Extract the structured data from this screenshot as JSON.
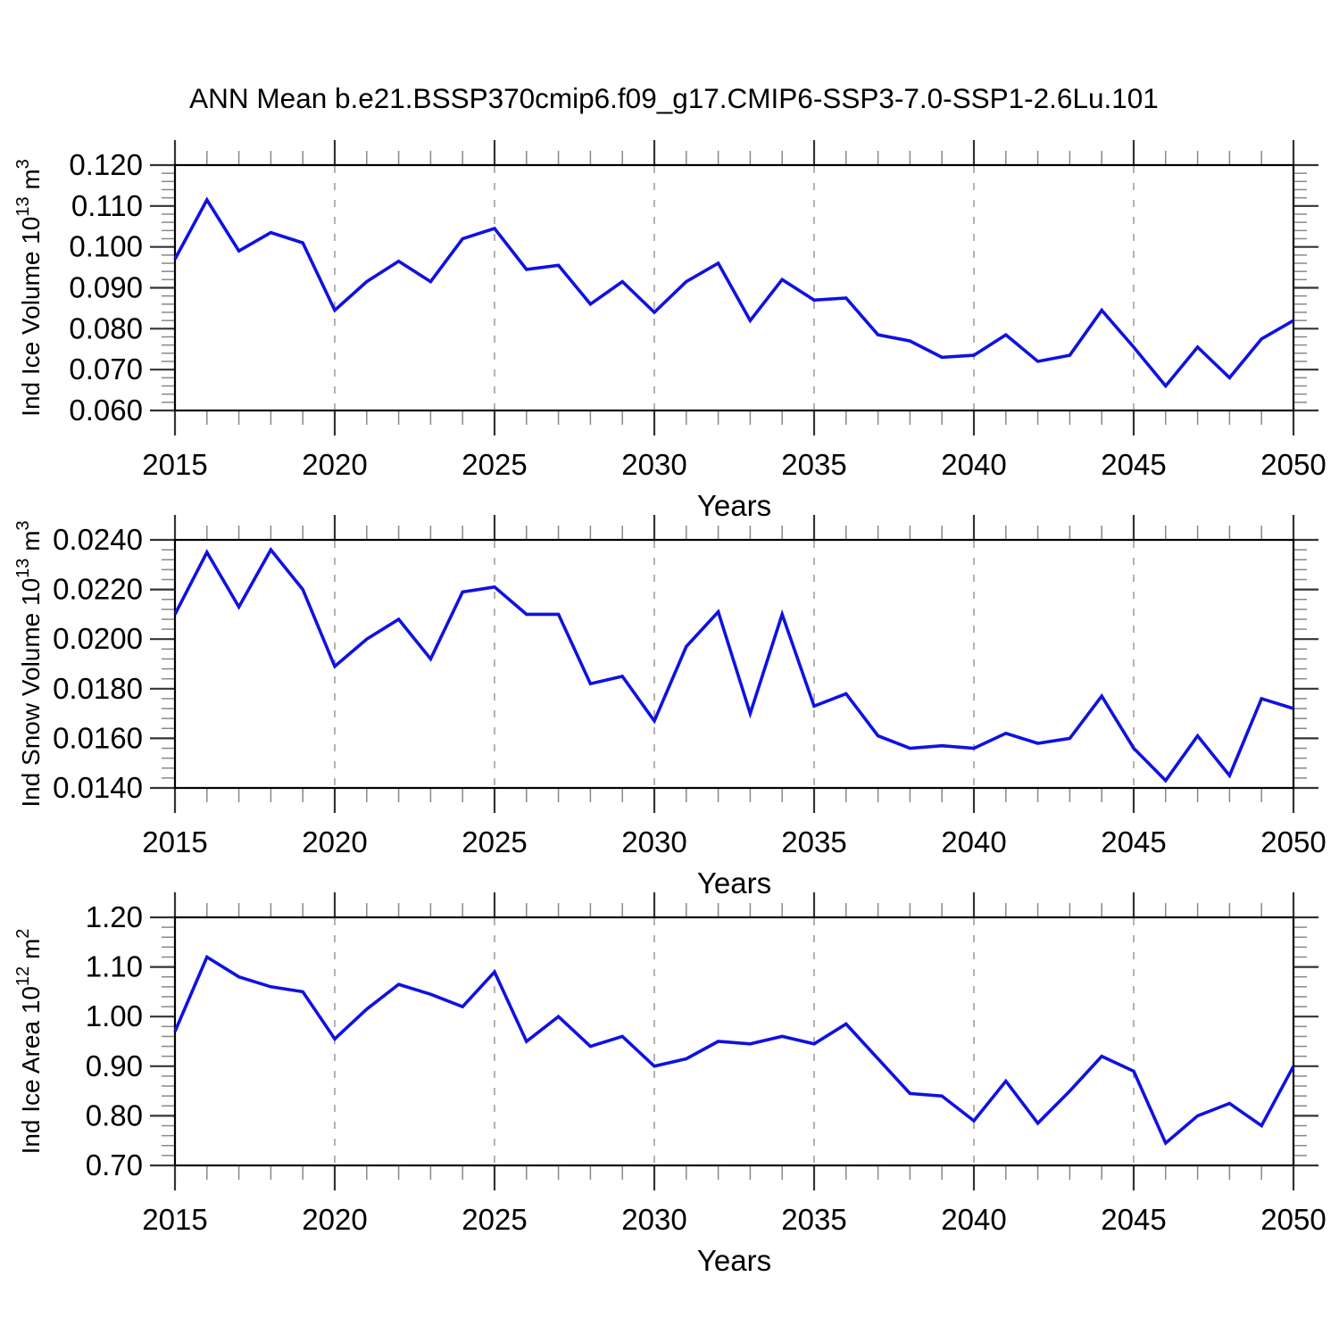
{
  "title": "ANN Mean b.e21.BSSP370cmip6.f09_g17.CMIP6-SSP3-7.0-SSP1-2.6Lu.101",
  "background": "#ffffff",
  "line_color": "#0f12e0",
  "grid_color": "#a0a0a0",
  "axis_color": "#000000",
  "major_tick_color": "#333333",
  "minor_tick_color": "#888888",
  "chart_data": [
    {
      "type": "line",
      "name": "ice-volume",
      "ylabel": "Ind Ice Volume 10^13 m^3",
      "ylabel_parts": {
        "pre": "Ind Ice Volume 10",
        "sup": "13",
        "mid": " m",
        "sup2": "3"
      },
      "xlabel": "Years",
      "xlim": [
        2015,
        2050
      ],
      "ylim": [
        0.06,
        0.12
      ],
      "ytick_labels": [
        "0.120",
        "0.110",
        "0.100",
        "0.090",
        "0.080",
        "0.070",
        "0.060"
      ],
      "xtick_labels": [
        "2015",
        "2020",
        "2025",
        "2030",
        "2035",
        "2040",
        "2045",
        "2050"
      ],
      "x_gridlines": [
        2020,
        2025,
        2030,
        2035,
        2040,
        2045
      ],
      "y_minor_per_major": 5,
      "x_minor_step_years": 1,
      "grid": "vertical-dashed",
      "legend": "none",
      "x": [
        2015,
        2016,
        2017,
        2018,
        2019,
        2020,
        2021,
        2022,
        2023,
        2024,
        2025,
        2026,
        2027,
        2028,
        2029,
        2030,
        2031,
        2032,
        2033,
        2034,
        2035,
        2036,
        2037,
        2038,
        2039,
        2040,
        2041,
        2042,
        2043,
        2044,
        2045,
        2046,
        2047,
        2048,
        2049,
        2050
      ],
      "y": [
        0.097,
        0.1115,
        0.099,
        0.1035,
        0.101,
        0.0845,
        0.0915,
        0.0965,
        0.0915,
        0.102,
        0.1045,
        0.0945,
        0.0955,
        0.086,
        0.0915,
        0.084,
        0.0915,
        0.096,
        0.082,
        0.092,
        0.087,
        0.0875,
        0.0785,
        0.077,
        0.073,
        0.0735,
        0.0785,
        0.072,
        0.0735,
        0.0845,
        0.0755,
        0.066,
        0.0755,
        0.068,
        0.0775,
        0.082
      ]
    },
    {
      "type": "line",
      "name": "snow-volume",
      "ylabel": "Ind Snow Volume 10^13 m^3",
      "ylabel_parts": {
        "pre": "Ind Snow Volume 10",
        "sup": "13",
        "mid": " m",
        "sup2": "3"
      },
      "xlabel": "Years",
      "xlim": [
        2015,
        2050
      ],
      "ylim": [
        0.014,
        0.024
      ],
      "ytick_labels": [
        "0.0240",
        "0.0220",
        "0.0200",
        "0.0180",
        "0.0160",
        "0.0140"
      ],
      "xtick_labels": [
        "2015",
        "2020",
        "2025",
        "2030",
        "2035",
        "2040",
        "2045",
        "2050"
      ],
      "x_gridlines": [
        2020,
        2025,
        2030,
        2035,
        2040,
        2045
      ],
      "y_minor_per_major": 5,
      "x_minor_step_years": 1,
      "grid": "vertical-dashed",
      "legend": "none",
      "x": [
        2015,
        2016,
        2017,
        2018,
        2019,
        2020,
        2021,
        2022,
        2023,
        2024,
        2025,
        2026,
        2027,
        2028,
        2029,
        2030,
        2031,
        2032,
        2033,
        2034,
        2035,
        2036,
        2037,
        2038,
        2039,
        2040,
        2041,
        2042,
        2043,
        2044,
        2045,
        2046,
        2047,
        2048,
        2049,
        2050
      ],
      "y": [
        0.021,
        0.0235,
        0.0213,
        0.0236,
        0.022,
        0.0189,
        0.02,
        0.0208,
        0.0192,
        0.0219,
        0.0221,
        0.021,
        0.021,
        0.0182,
        0.0185,
        0.0167,
        0.0197,
        0.0211,
        0.017,
        0.021,
        0.0173,
        0.0178,
        0.0161,
        0.0156,
        0.0157,
        0.0156,
        0.0162,
        0.0158,
        0.016,
        0.0177,
        0.0156,
        0.0143,
        0.0161,
        0.0145,
        0.0176,
        0.0172
      ]
    },
    {
      "type": "line",
      "name": "ice-area",
      "ylabel": "Ind Ice Area 10^12 m^2",
      "ylabel_parts": {
        "pre": "Ind Ice Area 10",
        "sup": "12",
        "mid": " m",
        "sup2": "2"
      },
      "xlabel": "Years",
      "xlim": [
        2015,
        2050
      ],
      "ylim": [
        0.7,
        1.2
      ],
      "ytick_labels": [
        "1.20",
        "1.10",
        "1.00",
        "0.90",
        "0.80",
        "0.70"
      ],
      "xtick_labels": [
        "2015",
        "2020",
        "2025",
        "2030",
        "2035",
        "2040",
        "2045",
        "2050"
      ],
      "x_gridlines": [
        2020,
        2025,
        2030,
        2035,
        2040,
        2045
      ],
      "y_minor_per_major": 5,
      "x_minor_step_years": 1,
      "grid": "vertical-dashed",
      "legend": "none",
      "x": [
        2015,
        2016,
        2017,
        2018,
        2019,
        2020,
        2021,
        2022,
        2023,
        2024,
        2025,
        2026,
        2027,
        2028,
        2029,
        2030,
        2031,
        2032,
        2033,
        2034,
        2035,
        2036,
        2037,
        2038,
        2039,
        2040,
        2041,
        2042,
        2043,
        2044,
        2045,
        2046,
        2047,
        2048,
        2049,
        2050
      ],
      "y": [
        0.97,
        1.12,
        1.08,
        1.06,
        1.05,
        0.955,
        1.015,
        1.065,
        1.045,
        1.02,
        1.09,
        0.95,
        1.0,
        0.94,
        0.96,
        0.9,
        0.915,
        0.95,
        0.945,
        0.96,
        0.945,
        0.985,
        0.915,
        0.845,
        0.84,
        0.79,
        0.87,
        0.785,
        0.85,
        0.92,
        0.89,
        0.745,
        0.8,
        0.825,
        0.78,
        0.9
      ]
    }
  ]
}
